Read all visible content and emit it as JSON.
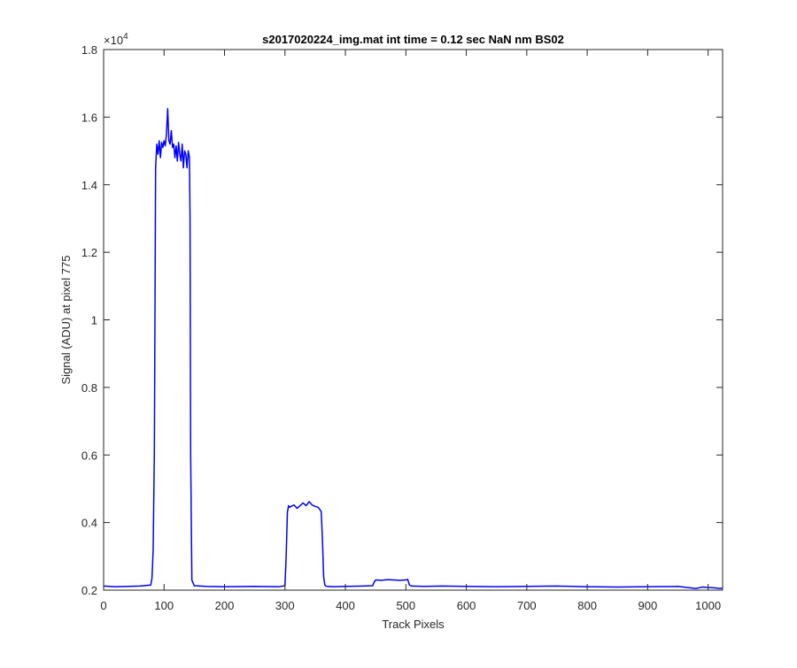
{
  "chart_data": {
    "type": "line",
    "title": "s2017020224_img.mat int time = 0.12 sec  NaN nm BS02",
    "xlabel": "Track Pixels",
    "ylabel": "Signal (ADU) at pixel 775",
    "xlim": [
      0,
      1024
    ],
    "ylim": [
      2000,
      18000
    ],
    "y_scale_exponent_base": "×10",
    "y_scale_exponent_power": "4",
    "x_ticks": [
      0,
      100,
      200,
      300,
      400,
      500,
      600,
      700,
      800,
      900,
      1000
    ],
    "x_tick_labels": [
      "0",
      "100",
      "200",
      "300",
      "400",
      "500",
      "600",
      "700",
      "800",
      "900",
      "1000"
    ],
    "y_ticks": [
      2000,
      4000,
      6000,
      8000,
      10000,
      12000,
      14000,
      16000,
      18000
    ],
    "y_tick_labels": [
      "0.2",
      "0.4",
      "0.6",
      "0.8",
      "1",
      "1.2",
      "1.4",
      "1.6",
      "1.8"
    ],
    "grid": false,
    "legend": "none",
    "line_color": "#0000ff",
    "series": [
      {
        "x": [
          0,
          20,
          40,
          60,
          78,
          80,
          82,
          84,
          86,
          88,
          90,
          92,
          94,
          96,
          98,
          100,
          102,
          104,
          106,
          108,
          110,
          112,
          114,
          116,
          118,
          120,
          122,
          124,
          126,
          128,
          130,
          132,
          134,
          136,
          138,
          140,
          142,
          143,
          144,
          146,
          150,
          170,
          200,
          250,
          290,
          300,
          302,
          304,
          306,
          308,
          310,
          315,
          320,
          325,
          330,
          335,
          340,
          345,
          350,
          355,
          360,
          362,
          364,
          366,
          368,
          370,
          380,
          400,
          430,
          445,
          448,
          450,
          460,
          470,
          480,
          490,
          500,
          503,
          506,
          510,
          530,
          560,
          600,
          650,
          700,
          750,
          800,
          850,
          900,
          950,
          970,
          980,
          990,
          1000,
          1010,
          1020,
          1024
        ],
        "y": [
          2120,
          2100,
          2110,
          2120,
          2150,
          2350,
          3200,
          6200,
          14500,
          15200,
          14900,
          15300,
          14800,
          15250,
          15100,
          15300,
          15150,
          15500,
          16250,
          15300,
          15200,
          15600,
          15100,
          15200,
          14800,
          15150,
          14700,
          15250,
          14900,
          14700,
          15200,
          14500,
          15000,
          14900,
          14500,
          15000,
          14800,
          13000,
          6000,
          2300,
          2130,
          2110,
          2100,
          2110,
          2100,
          2130,
          3000,
          4300,
          4500,
          4450,
          4480,
          4520,
          4420,
          4500,
          4580,
          4500,
          4620,
          4520,
          4480,
          4450,
          4330,
          3500,
          2400,
          2150,
          2120,
          2110,
          2100,
          2110,
          2120,
          2130,
          2250,
          2300,
          2290,
          2310,
          2300,
          2290,
          2300,
          2320,
          2150,
          2120,
          2110,
          2120,
          2110,
          2100,
          2110,
          2120,
          2100,
          2090,
          2100,
          2110,
          2070,
          2050,
          2090,
          2080,
          2070,
          2050,
          2060
        ]
      }
    ]
  }
}
